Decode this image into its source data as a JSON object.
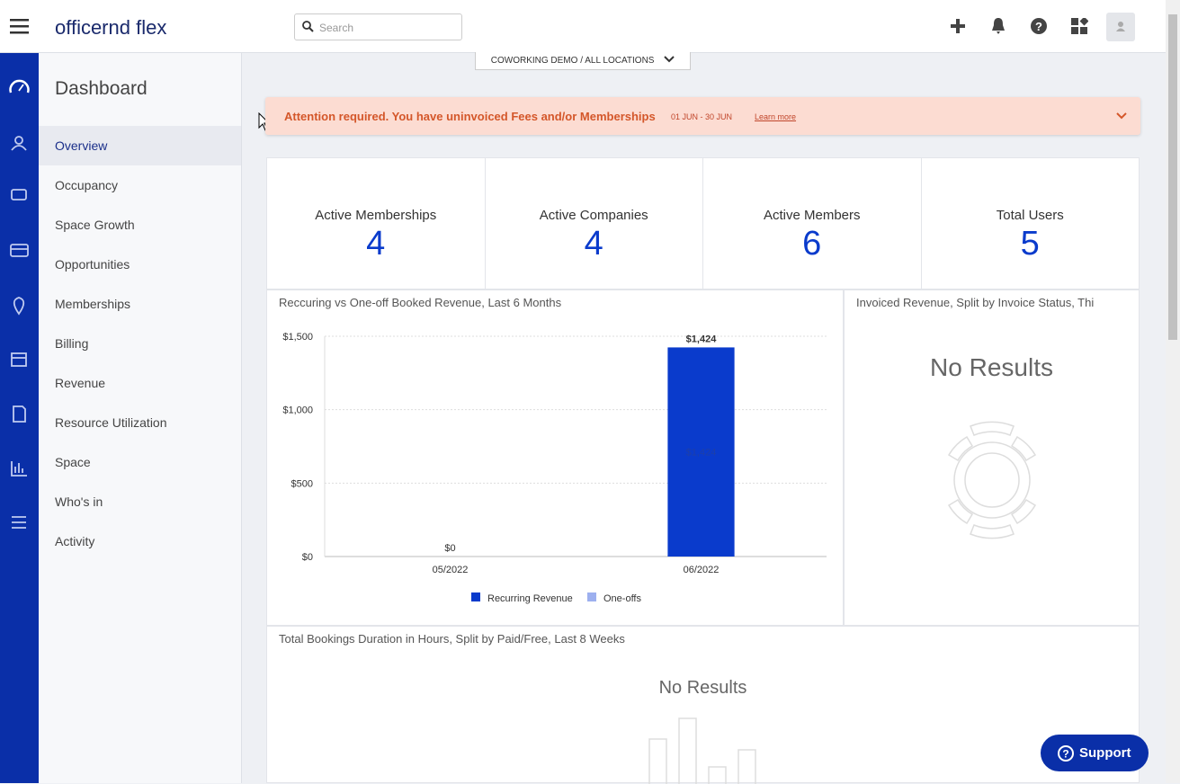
{
  "header": {
    "logo_prefix": "officernd",
    "logo_suffix": "flex",
    "search_placeholder": "Search"
  },
  "breadcrumb": {
    "company": "COWORKING DEMO",
    "separator": "/",
    "location": "ALL LOCATIONS"
  },
  "sidebar": {
    "title": "Dashboard",
    "active": 0,
    "items": [
      "Overview",
      "Occupancy",
      "Space Growth",
      "Opportunities",
      "Memberships",
      "Billing",
      "Revenue",
      "Resource Utilization",
      "Space",
      "Who's in",
      "Activity"
    ]
  },
  "alert": {
    "message": "Attention required. You have uninvoiced Fees and/or Memberships",
    "period": "01 JUN - 30 JUN",
    "link": "Learn more"
  },
  "stats": [
    {
      "label": "Active Memberships",
      "value": 4
    },
    {
      "label": "Active Companies",
      "value": 4
    },
    {
      "label": "Active Members",
      "value": 6
    },
    {
      "label": "Total Users",
      "value": 5
    }
  ],
  "chart_data": {
    "type": "bar",
    "stacked": true,
    "title": "Reccuring vs One-off Booked Revenue, Last 6 Months",
    "categories": [
      "05/2022",
      "06/2022"
    ],
    "series": [
      {
        "name": "Recurring Revenue",
        "color": "#0a3bcc",
        "values": [
          0,
          1424
        ],
        "value_labels": [
          null,
          "$1,424"
        ]
      },
      {
        "name": "One-offs",
        "color": "#9db0ef",
        "values": [
          0,
          0
        ],
        "value_labels": [
          null,
          null
        ]
      }
    ],
    "totals": [
      0,
      1424
    ],
    "total_labels": [
      "$0",
      "$1,424"
    ],
    "ylim": [
      0,
      1500
    ],
    "yticks": [
      {
        "value": 0,
        "label": "$0"
      },
      {
        "value": 500,
        "label": "$500"
      },
      {
        "value": 1000,
        "label": "$1,000"
      },
      {
        "value": 1500,
        "label": "$1,500"
      }
    ],
    "grid": true
  },
  "invoice_panel": {
    "title": "Invoiced Revenue, Split by Invoice Status, Thi",
    "empty": "No Results"
  },
  "bookings_panel": {
    "title": "Total Bookings Duration in Hours, Split by Paid/Free, Last 8 Weeks",
    "empty": "No Results"
  },
  "support_button": "Support"
}
